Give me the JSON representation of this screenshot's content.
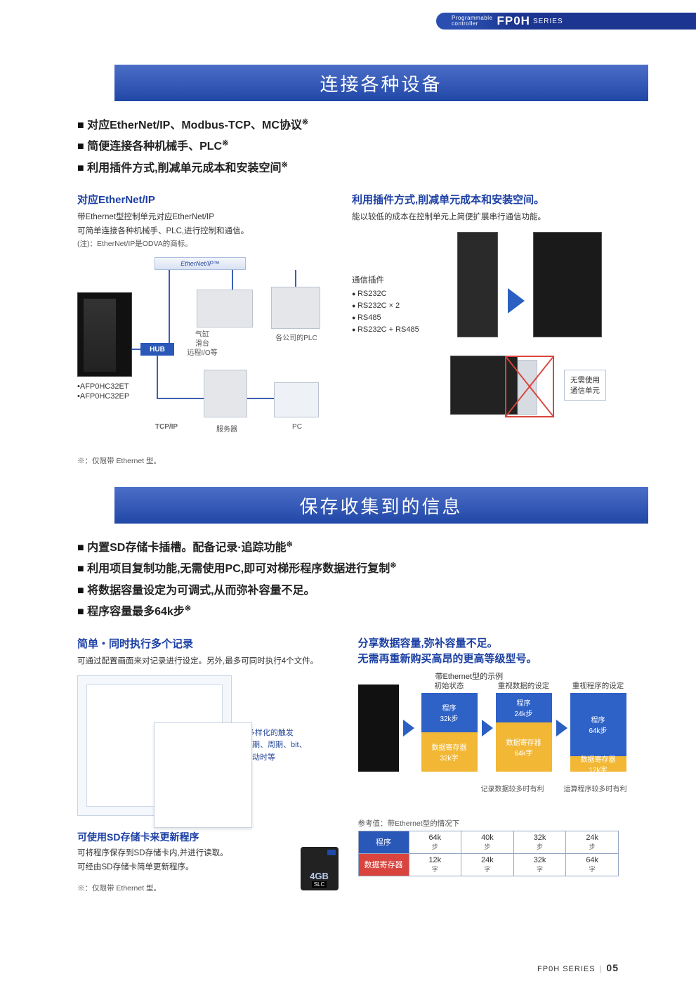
{
  "header": {
    "pc_line1": "Programmable",
    "pc_line2": "controller",
    "brand": "FP0H",
    "series": "SERIES"
  },
  "section1": {
    "banner": "连接各种设备",
    "bullets": [
      "对应EtherNet/IP、Modbus-TCP、MC协议",
      "简便连接各种机械手、PLC",
      "利用插件方式,削减单元成本和安装空间"
    ],
    "bullet_sup": "※",
    "left": {
      "heading": "对应EtherNet/IP",
      "p1": "带Ethernet型控制单元对应EtherNet/IP",
      "p2": "可简单连接各种机械手、PLC,进行控制和通信。",
      "p3": "(注)：EtherNet/IP是ODVA的商标。",
      "enip_logo": "EtherNet/IP™",
      "hub": "HUB",
      "lbl_robot_l1": "气缸",
      "lbl_robot_l2": "滑台",
      "lbl_robot_l3": "远程I/O等",
      "lbl_plc": "各公司的PLC",
      "lbl_tcpip": "TCP/IP",
      "lbl_server": "服务器",
      "lbl_pc": "PC",
      "model1": "•AFP0HC32ET",
      "model2": "•AFP0HC32EP"
    },
    "right": {
      "heading": "利用插件方式,削减单元成本和安装空间。",
      "p1": "能以较低的成本在控制单元上简便扩展串行通信功能。",
      "plugin_title": "通信插件",
      "plugins": [
        "RS232C",
        "RS232C × 2",
        "RS485",
        "RS232C + RS485"
      ],
      "callout_l1": "无需使用",
      "callout_l2": "通信单元"
    },
    "footnote": "※：仅限带 Ethernet 型。"
  },
  "section2": {
    "banner": "保存收集到的信息",
    "bullets": [
      {
        "t": "内置SD存储卡插槽。配备记录·追踪功能",
        "sup": true
      },
      {
        "t": "利用项目复制功能,无需使用PC,即可对梯形程序数据进行复制",
        "sup": true
      },
      {
        "t": "将数据容量设定为可调式,从而弥补容量不足。",
        "sup": false
      },
      {
        "t": "程序容量最多64k步",
        "sup": true
      }
    ],
    "left": {
      "heading": "简单・同时执行多个记录",
      "p1": "可通过配置画面来对记录进行设定。另外,最多可同时执行4个文件。",
      "note_l1": "•多样化的触发",
      "note_l2": "定期、周期、bit、",
      "note_l3": "启动时等",
      "h3": "可使用SD存储卡来更新程序",
      "p3a": "可将程序保存到SD存储卡内,并进行读取。",
      "p3b": "可经由SD存储卡简单更新程序。",
      "sd_cap": "4GB",
      "sd_slc": "SLC"
    },
    "right": {
      "heading_l1": "分享数据容量,弥补容量不足。",
      "heading_l2": "无需再重新购买高昂的更高等级型号。",
      "chart": {
        "top_caption": "带Ethernet型的示例",
        "col_labels": [
          "初始状态",
          "重视数据的设定",
          "重视程序的设定"
        ],
        "cols": [
          {
            "prog": "程序",
            "prog_v": "32k步",
            "data": "数据寄存器",
            "data_v": "32k字",
            "prog_h": 56,
            "data_h": 56
          },
          {
            "prog": "程序",
            "prog_v": "24k步",
            "data": "数据寄存器",
            "data_v": "64k字",
            "prog_h": 42,
            "data_h": 70
          },
          {
            "prog": "程序",
            "prog_v": "64k步",
            "data": "数据寄存器",
            "data_v": "12k字",
            "prog_h": 90,
            "data_h": 22
          }
        ],
        "btm1": "记录数据较多时有利",
        "btm2": "运算程序较多时有利",
        "colors": {
          "prog": "#2e62c7",
          "data": "#f2b734"
        }
      },
      "table": {
        "caption": "参考值：带Ethernet型的情况下",
        "row1_h": "程序",
        "row2_h": "数据寄存器",
        "row1": [
          [
            "64k",
            "步"
          ],
          [
            "40k",
            "步"
          ],
          [
            "32k",
            "步"
          ],
          [
            "24k",
            "步"
          ]
        ],
        "row2": [
          [
            "12k",
            "字"
          ],
          [
            "24k",
            "字"
          ],
          [
            "32k",
            "字"
          ],
          [
            "64k",
            "字"
          ]
        ]
      }
    },
    "footnote": "※：仅限带 Ethernet 型。"
  },
  "footer": {
    "series": "FP0H SERIES",
    "page": "05"
  },
  "colors": {
    "brand_blue": "#1b3fa3",
    "banner_grad_top": "#4b6ec7",
    "banner_grad_bot": "#2147a7",
    "accent_red": "#d9443e"
  }
}
